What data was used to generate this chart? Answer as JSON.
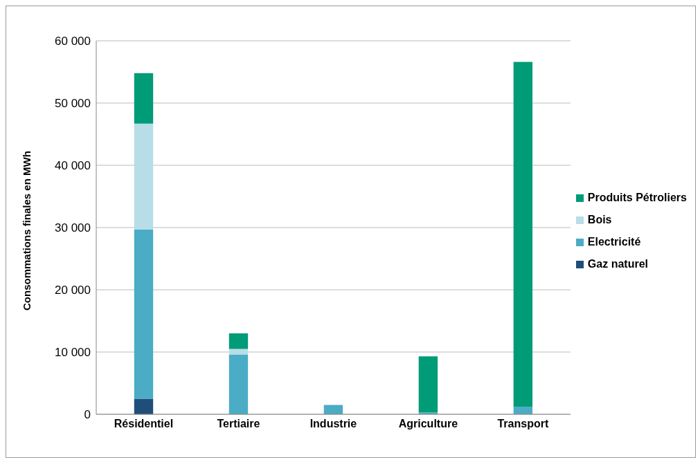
{
  "chart_data": {
    "type": "bar",
    "stacked": true,
    "ylabel": "Consommations finales en MWh",
    "categories": [
      "Résidentiel",
      "Tertiaire",
      "Industrie",
      "Agriculture",
      "Transport"
    ],
    "series": [
      {
        "name": "Gaz naturel",
        "color": "#1f4e79",
        "values": [
          2500,
          0,
          0,
          0,
          0
        ]
      },
      {
        "name": "Electricité",
        "color": "#4bacc6",
        "values": [
          27200,
          9600,
          1500,
          300,
          1200
        ]
      },
      {
        "name": "Bois",
        "color": "#b7dde8",
        "values": [
          17000,
          900,
          0,
          0,
          0
        ]
      },
      {
        "name": "Produits Pétroliers",
        "color": "#009b77",
        "values": [
          8100,
          2500,
          0,
          9000,
          55400
        ]
      }
    ],
    "ylim": [
      0,
      60000
    ],
    "yticks": [
      {
        "value": 0,
        "label": "0"
      },
      {
        "value": 10000,
        "label": "10 000"
      },
      {
        "value": 20000,
        "label": "20 000"
      },
      {
        "value": 30000,
        "label": "30 000"
      },
      {
        "value": 40000,
        "label": "40 000"
      },
      {
        "value": 50000,
        "label": "50 000"
      },
      {
        "value": 60000,
        "label": "60 000"
      }
    ],
    "grid": "y",
    "legend": "right"
  }
}
